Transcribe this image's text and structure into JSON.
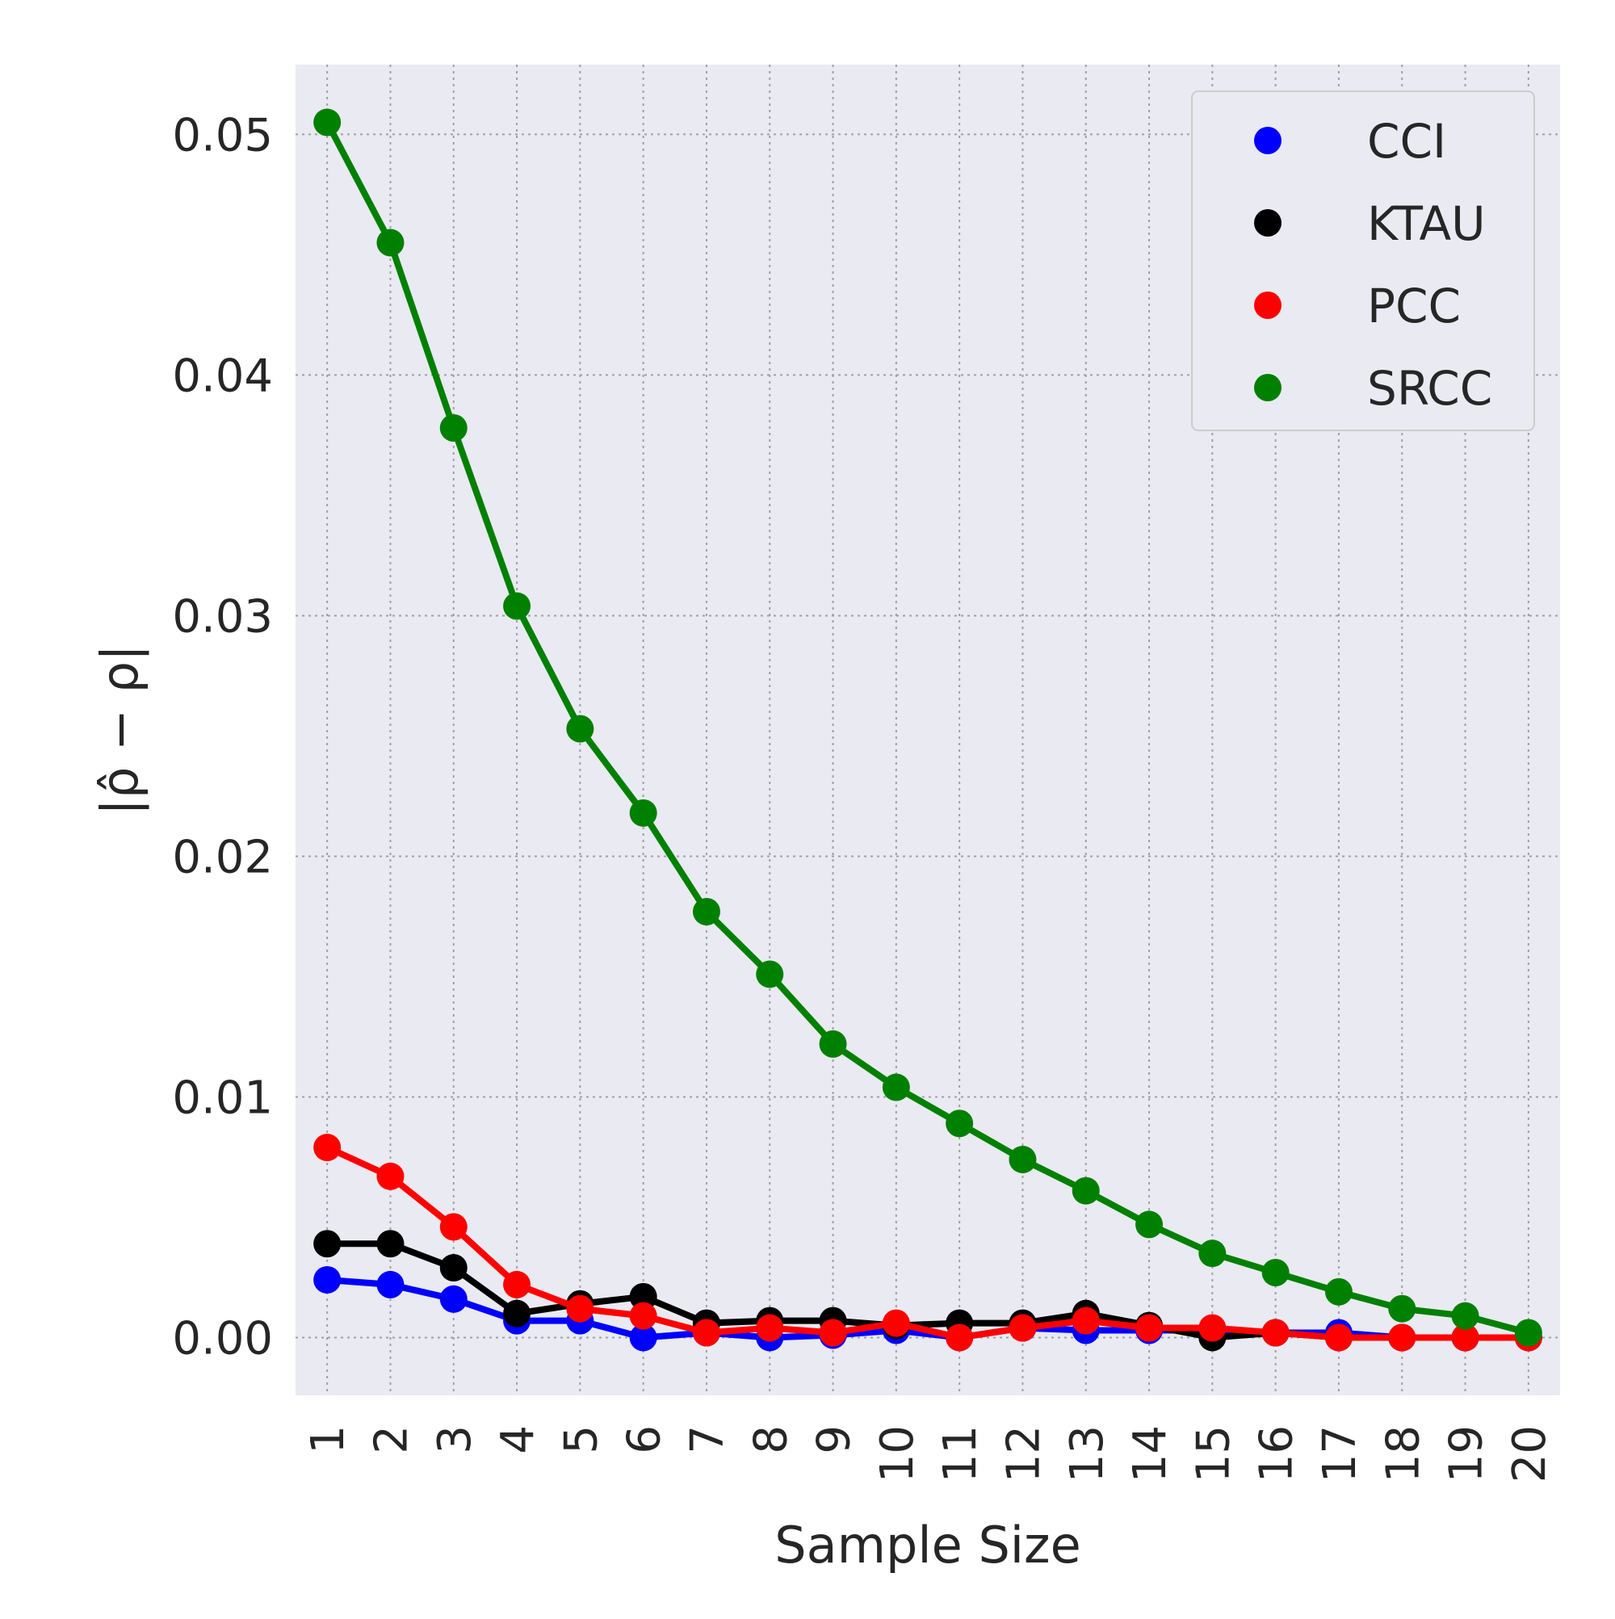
{
  "chart_data": {
    "type": "line",
    "title": "",
    "xlabel": "Sample Size",
    "ylabel": "|ρ̂ − ρ|",
    "x": [
      1,
      2,
      3,
      4,
      5,
      6,
      7,
      8,
      9,
      10,
      11,
      12,
      13,
      14,
      15,
      16,
      17,
      18,
      19,
      20
    ],
    "xtick_labels": [
      "1",
      "2",
      "3",
      "4",
      "5",
      "6",
      "7",
      "8",
      "9",
      "10",
      "11",
      "12",
      "13",
      "14",
      "15",
      "16",
      "17",
      "18",
      "19",
      "20"
    ],
    "ytick_values": [
      0.0,
      0.01,
      0.02,
      0.03,
      0.04,
      0.05
    ],
    "ytick_labels": [
      "0.00",
      "0.01",
      "0.02",
      "0.03",
      "0.04",
      "0.05"
    ],
    "ylim": [
      -0.0024,
      0.0529
    ],
    "xlim": [
      0.5,
      20.5
    ],
    "grid": true,
    "legend_position": "top-right",
    "background_color": "#eaeaf2",
    "series": [
      {
        "name": "CCI",
        "color": "#0000ff",
        "values": [
          0.0024,
          0.0022,
          0.0016,
          0.0007,
          0.0007,
          0.0,
          0.0002,
          0.0,
          0.0001,
          0.0003,
          0.0,
          0.0004,
          0.0003,
          0.0003,
          0.0003,
          0.0002,
          0.0002,
          0.0,
          0.0,
          0.0
        ]
      },
      {
        "name": "KTAU",
        "color": "#000000",
        "values": [
          0.0039,
          0.0039,
          0.0029,
          0.001,
          0.0014,
          0.0017,
          0.0006,
          0.0007,
          0.0007,
          0.0005,
          0.0006,
          0.0006,
          0.001,
          0.0005,
          0.0,
          0.0002,
          0.0,
          0.0,
          0.0,
          0.0
        ]
      },
      {
        "name": "PCC",
        "color": "#ff0000",
        "values": [
          0.0079,
          0.0067,
          0.0046,
          0.0022,
          0.0012,
          0.0009,
          0.0002,
          0.0004,
          0.0002,
          0.0006,
          0.0,
          0.0004,
          0.0007,
          0.0004,
          0.0004,
          0.0002,
          0.0,
          0.0,
          0.0,
          0.0
        ]
      },
      {
        "name": "SRCC",
        "color": "#008000",
        "values": [
          0.0505,
          0.0455,
          0.0378,
          0.0304,
          0.0253,
          0.0218,
          0.0177,
          0.0151,
          0.0122,
          0.0104,
          0.0089,
          0.0074,
          0.0061,
          0.0047,
          0.0035,
          0.0027,
          0.0019,
          0.0012,
          0.0009,
          0.0002
        ]
      }
    ]
  }
}
